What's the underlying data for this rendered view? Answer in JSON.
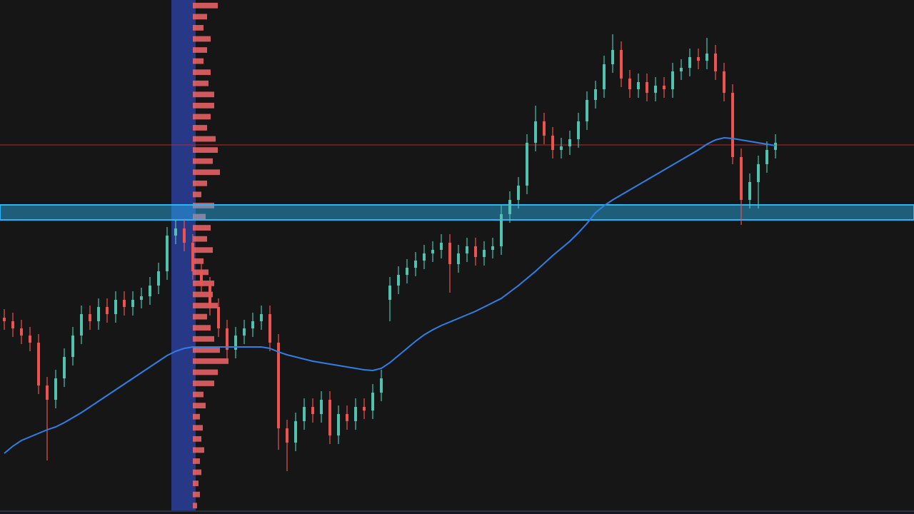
{
  "chart_data": {
    "type": "candlestick",
    "ylim": [
      0,
      720
    ],
    "up_color": "#4fc3b0",
    "down_color": "#ef5350",
    "open": [
      275,
      270,
      260,
      250,
      240,
      180,
      160,
      190,
      220,
      250,
      280,
      270,
      290,
      280,
      300,
      290,
      300,
      305,
      320,
      340,
      390,
      400,
      380,
      340,
      320,
      290,
      260,
      230,
      250,
      260,
      270,
      280,
      240,
      120,
      100,
      130,
      150,
      140,
      160,
      110,
      140,
      130,
      150,
      145,
      170,
      300,
      320,
      335,
      345,
      355,
      365,
      370,
      380,
      350,
      365,
      375,
      360,
      370,
      375,
      420,
      440,
      460,
      520,
      550,
      530,
      510,
      515,
      525,
      550,
      580,
      595,
      630,
      650,
      610,
      595,
      605,
      590,
      600,
      595,
      620,
      625,
      640,
      635,
      645,
      620,
      590,
      500,
      440,
      465,
      490,
      510
    ],
    "high": [
      287,
      282,
      272,
      262,
      252,
      192,
      202,
      232,
      262,
      292,
      292,
      302,
      302,
      312,
      312,
      312,
      317,
      332,
      352,
      402,
      412,
      412,
      392,
      352,
      332,
      302,
      272,
      262,
      272,
      282,
      292,
      292,
      252,
      132,
      142,
      162,
      162,
      172,
      172,
      152,
      152,
      162,
      162,
      182,
      202,
      332,
      347,
      357,
      367,
      377,
      382,
      392,
      392,
      377,
      387,
      387,
      382,
      387,
      432,
      452,
      472,
      532,
      572,
      562,
      542,
      527,
      537,
      562,
      592,
      607,
      642,
      672,
      662,
      622,
      617,
      617,
      612,
      612,
      632,
      637,
      652,
      652,
      667,
      657,
      632,
      602,
      512,
      477,
      502,
      522,
      532
    ],
    "low": [
      258,
      248,
      238,
      228,
      168,
      75,
      148,
      178,
      208,
      238,
      258,
      258,
      268,
      268,
      278,
      278,
      288,
      293,
      308,
      328,
      378,
      368,
      328,
      308,
      278,
      248,
      218,
      218,
      238,
      248,
      258,
      228,
      90,
      60,
      88,
      118,
      128,
      128,
      98,
      98,
      118,
      118,
      133,
      133,
      158,
      270,
      308,
      323,
      333,
      343,
      353,
      358,
      310,
      338,
      353,
      348,
      348,
      358,
      363,
      408,
      428,
      448,
      508,
      518,
      498,
      498,
      503,
      513,
      538,
      568,
      583,
      618,
      598,
      583,
      583,
      578,
      578,
      583,
      583,
      608,
      613,
      623,
      623,
      608,
      578,
      490,
      405,
      428,
      428,
      478,
      498
    ],
    "close": [
      270,
      260,
      250,
      240,
      180,
      160,
      190,
      220,
      250,
      280,
      270,
      290,
      280,
      300,
      290,
      300,
      305,
      320,
      340,
      390,
      400,
      380,
      340,
      320,
      290,
      260,
      230,
      250,
      260,
      270,
      280,
      240,
      120,
      100,
      130,
      150,
      140,
      160,
      110,
      140,
      130,
      150,
      145,
      170,
      190,
      320,
      335,
      345,
      355,
      365,
      370,
      380,
      350,
      365,
      375,
      360,
      370,
      375,
      420,
      440,
      460,
      520,
      550,
      530,
      510,
      515,
      525,
      550,
      580,
      595,
      630,
      650,
      610,
      595,
      605,
      590,
      600,
      595,
      620,
      625,
      640,
      635,
      645,
      620,
      590,
      500,
      440,
      465,
      490,
      510,
      520
    ],
    "moving_average": {
      "color": "#2f7fe6",
      "values": [
        85,
        95,
        103,
        108,
        113,
        118,
        122,
        128,
        135,
        142,
        150,
        158,
        166,
        174,
        182,
        190,
        198,
        206,
        214,
        222,
        228,
        232,
        234,
        234,
        234,
        234,
        234,
        234,
        234,
        234,
        234,
        232,
        227,
        223,
        220,
        217,
        214,
        212,
        210,
        208,
        206,
        204,
        202,
        201,
        204,
        212,
        222,
        232,
        242,
        251,
        258,
        264,
        269,
        274,
        279,
        284,
        290,
        296,
        302,
        311,
        320,
        330,
        340,
        351,
        362,
        372,
        382,
        394,
        407,
        422,
        432,
        440,
        447,
        454,
        461,
        468,
        475,
        482,
        489,
        496,
        503,
        510,
        518,
        524,
        527,
        526,
        524,
        522,
        520,
        518,
        516
      ]
    },
    "levels": [
      {
        "value": 517,
        "color": "#b52a2a"
      }
    ],
    "zone": {
      "range": [
        412,
        433
      ],
      "color": "#29b6f6"
    },
    "volume_profile": {
      "color": "#f0656a",
      "values": [
        35,
        20,
        15,
        25,
        20,
        15,
        25,
        22,
        30,
        30,
        25,
        20,
        32,
        35,
        28,
        38,
        20,
        12,
        30,
        18,
        25,
        20,
        28,
        15,
        22,
        30,
        28,
        35,
        20,
        25,
        30,
        38,
        50,
        35,
        30,
        15,
        18,
        10,
        14,
        12,
        16,
        10,
        12,
        8,
        10,
        6
      ]
    }
  }
}
